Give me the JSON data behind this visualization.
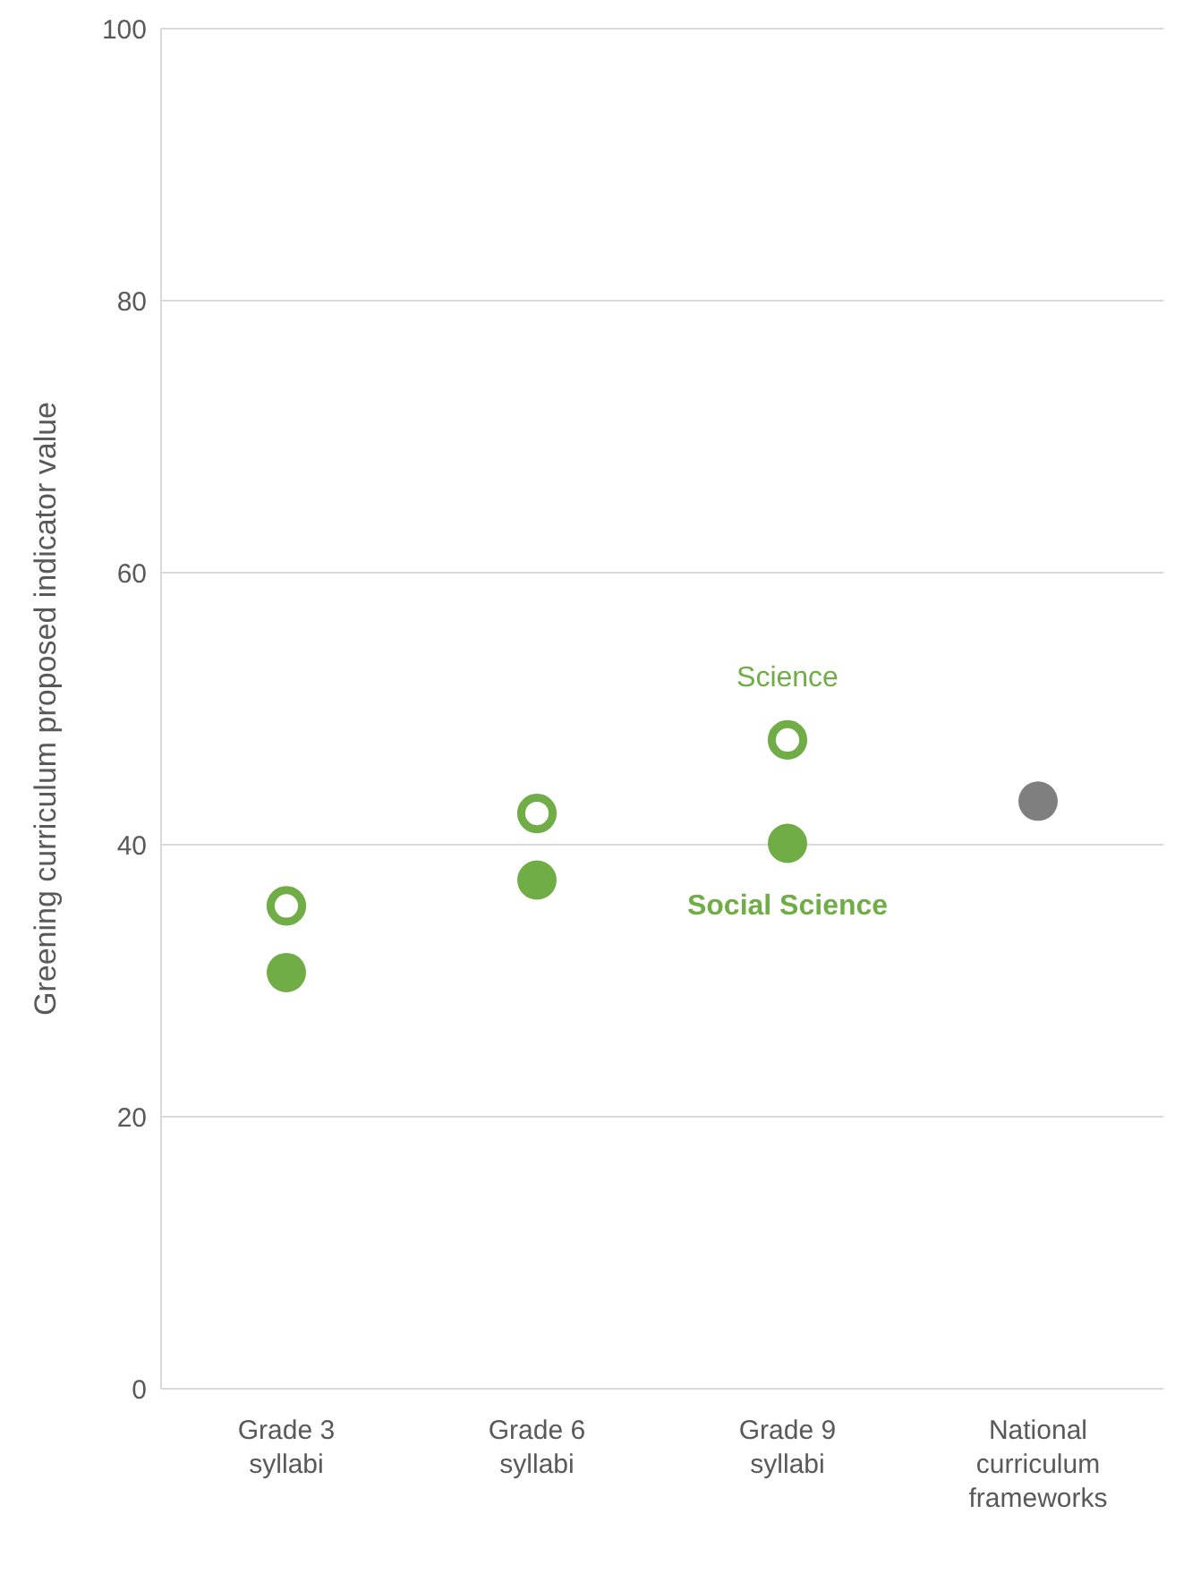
{
  "chart_data": {
    "type": "scatter",
    "ylabel": "Greening curriculum proposed indicator value",
    "categories": [
      "Grade 3 syllabi",
      "Grade 6 syllabi",
      "Grade 9 syllabi",
      "National curriculum frameworks"
    ],
    "series": [
      {
        "name": "Science",
        "color": "#70ad47",
        "values": [
          35.5,
          42.3,
          47.7,
          null
        ]
      },
      {
        "name": "Social Science",
        "color": "#70ad47",
        "values": [
          30.6,
          37.4,
          40.1,
          null
        ]
      },
      {
        "color": "#7f7f7f",
        "values": [
          null,
          null,
          null,
          43.2
        ]
      }
    ],
    "ylim": [
      0,
      100
    ],
    "yticks": [
      0,
      20,
      40,
      60,
      80,
      100
    ],
    "grid": "y",
    "marker": "circle",
    "legend": false
  }
}
